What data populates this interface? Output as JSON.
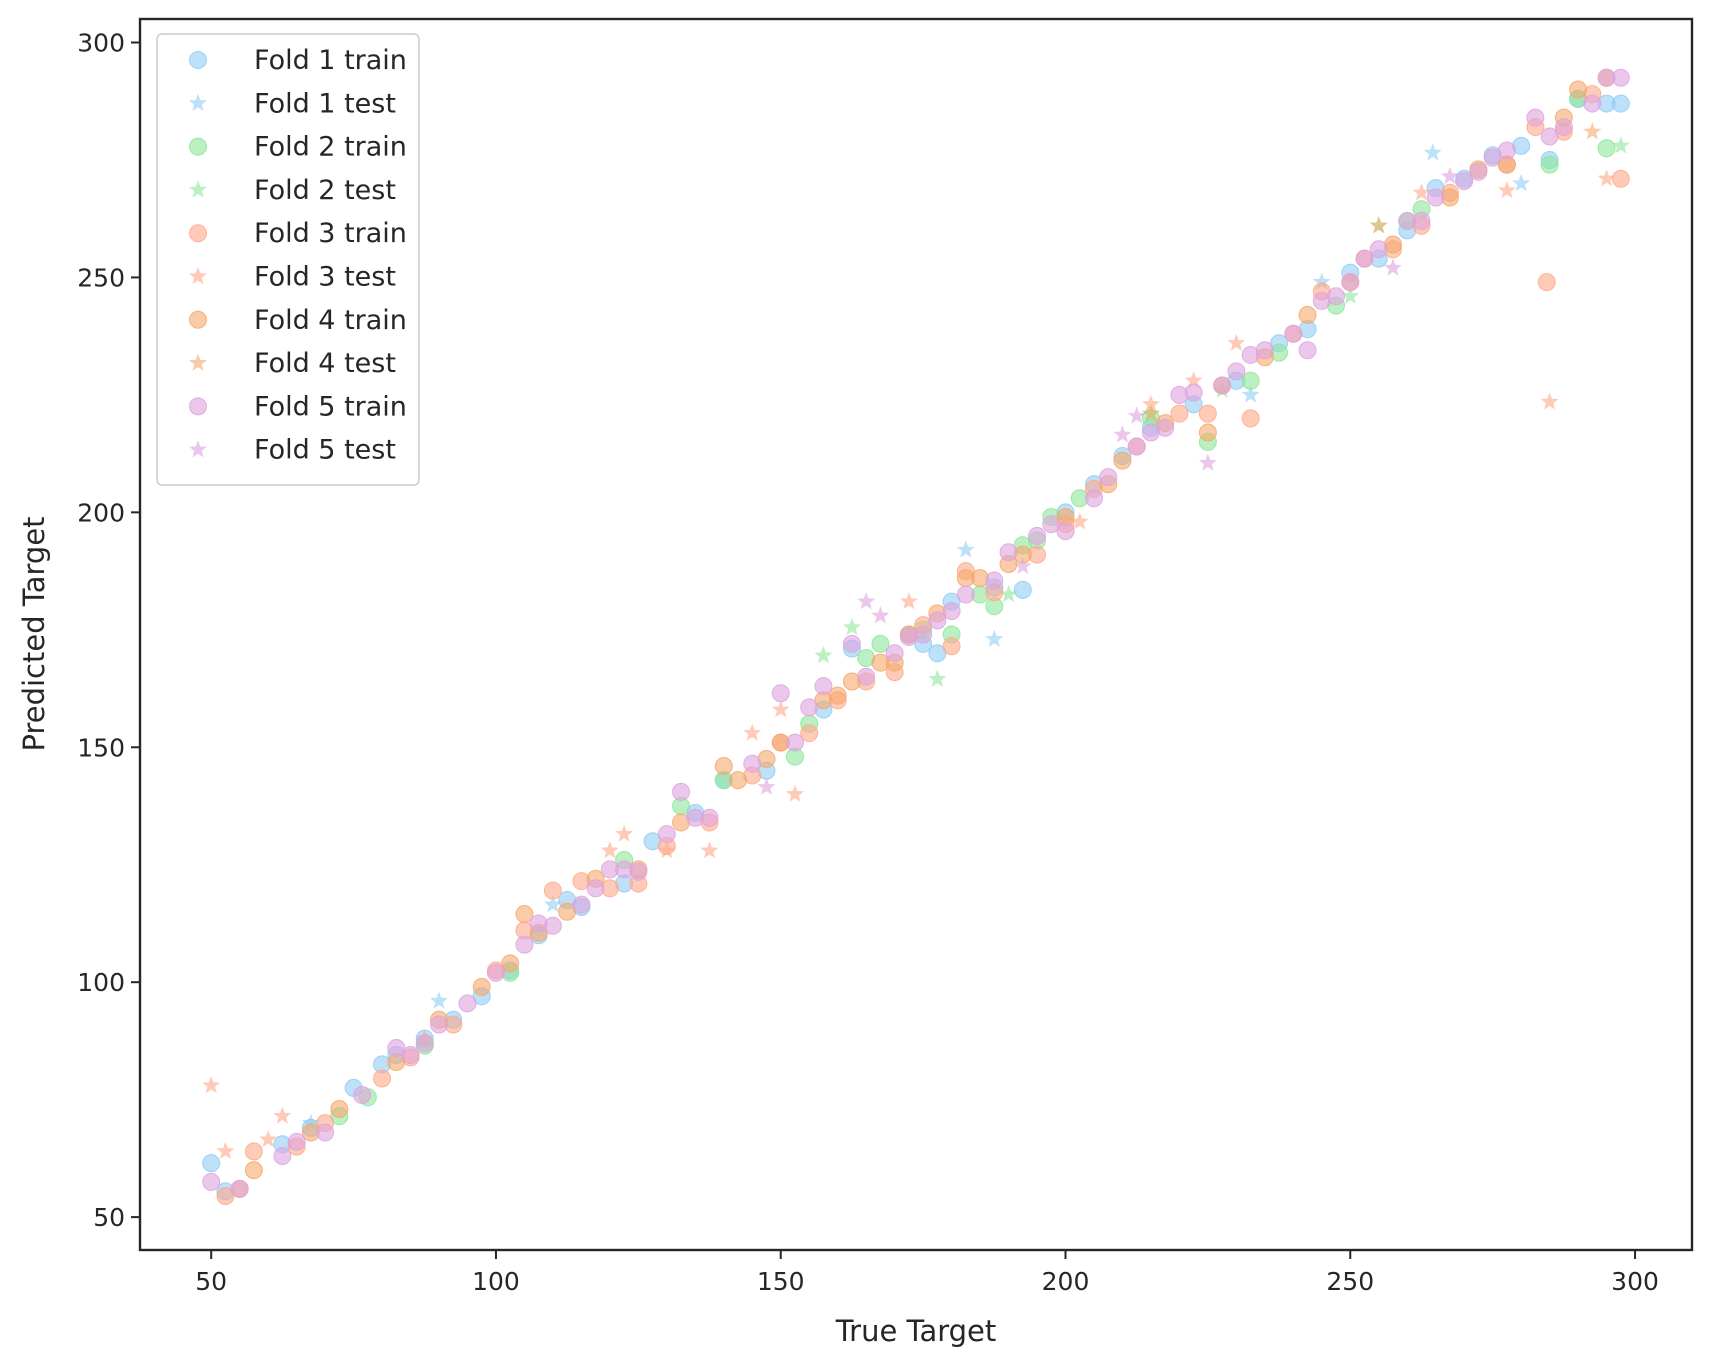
{
  "chart_data": {
    "type": "scatter",
    "title": "",
    "xlabel": "True Target",
    "ylabel": "Predicted Target",
    "xlim": [
      37.5,
      310
    ],
    "ylim": [
      43,
      305
    ],
    "xticks": [
      50,
      100,
      150,
      200,
      250,
      300
    ],
    "yticks": [
      50,
      100,
      150,
      200,
      250,
      300
    ],
    "grid": false,
    "legend_position": "top-left",
    "series": [
      {
        "name": "Fold 1 train",
        "marker": "circle",
        "color": "#8fcdf5",
        "x": [
          50,
          52.5,
          62.5,
          67.5,
          75,
          80,
          82.5,
          87.5,
          92.5,
          97.5,
          102.5,
          107.5,
          112.5,
          115,
          122.5,
          127.5,
          135,
          140,
          147.5,
          157.5,
          162.5,
          172.5,
          175,
          177.5,
          180,
          187.5,
          192.5,
          200,
          205,
          210,
          215,
          222.5,
          230,
          237.5,
          242.5,
          250,
          255,
          260,
          265,
          270,
          275,
          280,
          285,
          290,
          295,
          297.5
        ],
        "y": [
          61.5,
          55.5,
          65.5,
          69,
          77.5,
          82.5,
          84.5,
          88,
          92,
          97,
          102.5,
          110,
          117.5,
          116,
          121,
          130,
          136,
          143,
          145,
          158,
          171,
          174,
          172,
          170,
          181,
          184,
          183.5,
          200,
          206,
          212,
          218,
          223,
          228,
          236,
          239,
          251,
          254,
          260,
          269,
          271,
          276,
          278,
          275,
          288,
          287,
          287
        ]
      },
      {
        "name": "Fold 1 test",
        "marker": "star",
        "color": "#8fcdf5",
        "x": [
          67.5,
          90,
          110,
          182.5,
          187.5,
          232.5,
          245,
          264.5,
          280
        ],
        "y": [
          70,
          96,
          116.5,
          192,
          173,
          225,
          249,
          276.5,
          270
        ]
      },
      {
        "name": "Fold 2 train",
        "marker": "circle",
        "color": "#8ee69a",
        "x": [
          72.5,
          77.5,
          87.5,
          102.5,
          122.5,
          132.5,
          140,
          152.5,
          155,
          165,
          167.5,
          175,
          180,
          185,
          187.5,
          192.5,
          195,
          197.5,
          202.5,
          215,
          225,
          232.5,
          237.5,
          247.5,
          260,
          262.5,
          285,
          290,
          295
        ],
        "y": [
          71.5,
          75.5,
          86.5,
          102,
          126,
          137.5,
          143,
          148,
          155,
          169,
          172,
          175,
          174,
          182.5,
          180,
          193,
          194,
          199,
          203,
          220,
          215,
          228,
          234,
          244,
          262,
          264.5,
          274,
          288,
          277.5
        ]
      },
      {
        "name": "Fold 2 test",
        "marker": "star",
        "color": "#8ee69a",
        "x": [
          157.5,
          162.5,
          177.5,
          190,
          215,
          227.5,
          250,
          255,
          297.5
        ],
        "y": [
          169.5,
          175.5,
          164.5,
          182.5,
          221,
          226,
          246,
          261,
          278
        ]
      },
      {
        "name": "Fold 3 train",
        "marker": "circle",
        "color": "#ffa98a",
        "x": [
          52.5,
          57.5,
          65,
          70,
          80,
          85,
          92.5,
          100,
          105,
          110,
          115,
          120,
          125,
          130,
          137.5,
          145,
          150,
          155,
          160,
          165,
          170,
          175,
          180,
          182.5,
          187.5,
          195,
          200,
          205,
          212.5,
          220,
          225,
          232.5,
          240,
          245,
          252.5,
          257.5,
          262.5,
          267.5,
          277.5,
          282.5,
          284.5,
          287.5,
          292.5,
          297.5
        ],
        "y": [
          54.5,
          64,
          65,
          70,
          79.5,
          84,
          91,
          102.5,
          111,
          119.5,
          121.5,
          120,
          121,
          129,
          134,
          144,
          151,
          153,
          160,
          164,
          166,
          176,
          171.5,
          187.5,
          183,
          191,
          197.5,
          205,
          214,
          221,
          221,
          220,
          238,
          247,
          254,
          256,
          261,
          268,
          274,
          282,
          249,
          281,
          289,
          271
        ]
      },
      {
        "name": "Fold 3 test",
        "marker": "star",
        "color": "#ffa98a",
        "x": [
          50,
          52.5,
          60,
          62.5,
          87.5,
          120,
          122.5,
          130,
          137.5,
          145,
          150,
          152.5,
          172.5,
          202.5,
          215,
          222.5,
          230,
          262.5,
          277.5,
          285,
          295
        ],
        "y": [
          78,
          64,
          66.5,
          71.5,
          88,
          128,
          131.5,
          128,
          128,
          153,
          158,
          140,
          181,
          198,
          223,
          228,
          236,
          268,
          268.5,
          223.5,
          271
        ]
      },
      {
        "name": "Fold 4 train",
        "marker": "circle",
        "color": "#f5a86a",
        "x": [
          55,
          57.5,
          67.5,
          72.5,
          82.5,
          90,
          97.5,
          102.5,
          105,
          107.5,
          112.5,
          117.5,
          125,
          132.5,
          140,
          142.5,
          147.5,
          150,
          157.5,
          160,
          162.5,
          167.5,
          170,
          172.5,
          177.5,
          182.5,
          185,
          190,
          192.5,
          200,
          207.5,
          210,
          217.5,
          225,
          227.5,
          235,
          242.5,
          250,
          257.5,
          267.5,
          272.5,
          277.5,
          287.5,
          290,
          295
        ],
        "y": [
          56,
          60,
          68,
          73,
          83,
          92,
          99,
          104,
          114.5,
          110.5,
          115,
          122,
          124,
          134,
          146,
          143,
          147.5,
          151,
          160,
          161,
          164,
          168,
          168,
          174,
          178.5,
          186,
          186,
          189,
          191,
          199,
          206,
          211,
          219,
          217,
          227,
          233,
          242,
          249,
          257,
          267,
          273,
          274,
          284,
          290,
          292.5
        ]
      },
      {
        "name": "Fold 4 test",
        "marker": "star",
        "color": "#f5a86a",
        "x": [
          215,
          255,
          292.5
        ],
        "y": [
          221,
          261,
          281
        ]
      },
      {
        "name": "Fold 5 train",
        "marker": "circle",
        "color": "#dea3de",
        "x": [
          50,
          55,
          62.5,
          65,
          70,
          76.5,
          82.5,
          85,
          87.5,
          90,
          95,
          100,
          105,
          107.5,
          110,
          115,
          117.5,
          120,
          122.5,
          125,
          130,
          132.5,
          135,
          137.5,
          145,
          150,
          152.5,
          155,
          157.5,
          162.5,
          165,
          170,
          172.5,
          175,
          177.5,
          180,
          182.5,
          187.5,
          190,
          195,
          197.5,
          200,
          205,
          207.5,
          212.5,
          215,
          217.5,
          220,
          222.5,
          227.5,
          230,
          232.5,
          235,
          240,
          242.5,
          245,
          247.5,
          250,
          252.5,
          255,
          260,
          262.5,
          265,
          270,
          272.5,
          275,
          277.5,
          282.5,
          285,
          287.5,
          292.5,
          295,
          297.5
        ],
        "y": [
          57.5,
          56,
          63,
          66,
          68,
          76,
          86,
          84.5,
          87,
          91,
          95.5,
          102,
          108,
          112.5,
          112,
          116.5,
          120,
          124,
          124,
          123.5,
          131.5,
          140.5,
          135,
          135,
          146.5,
          161.5,
          151,
          158.5,
          163,
          172,
          165,
          170,
          173.5,
          174,
          177,
          179,
          182.5,
          185.5,
          191.5,
          195,
          197.5,
          196,
          203,
          207.5,
          214,
          217,
          218,
          225,
          225.5,
          227,
          230,
          233.5,
          234.5,
          238,
          234.5,
          245,
          246,
          249,
          254,
          256,
          262,
          262,
          267,
          270.5,
          272.5,
          275.5,
          277,
          284,
          280,
          282,
          287,
          292.5,
          292.5
        ]
      },
      {
        "name": "Fold 5 test",
        "marker": "star",
        "color": "#dea3de",
        "x": [
          147.5,
          165,
          167.5,
          192.5,
          210,
          212.5,
          225,
          257.5,
          267.5
        ],
        "y": [
          141.5,
          181,
          178,
          188.5,
          216.5,
          220.5,
          210.5,
          252,
          271.5
        ]
      }
    ]
  }
}
